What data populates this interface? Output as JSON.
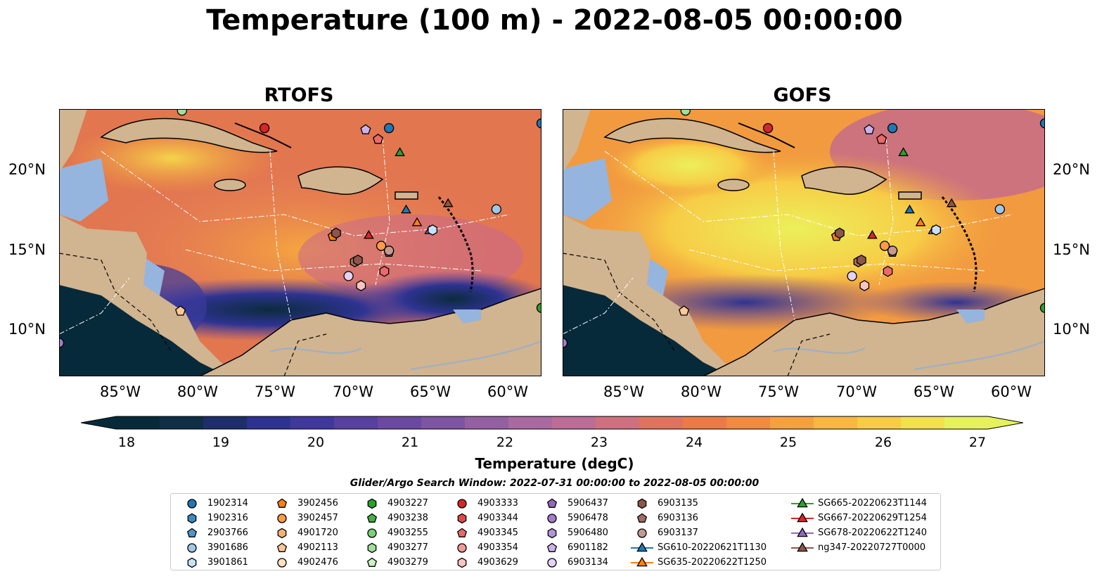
{
  "title": "Temperature (100 m) - 2022-08-05 00:00:00",
  "panels": [
    {
      "id": "rtofs",
      "title": "RTOFS"
    },
    {
      "id": "gofs",
      "title": "GOFS"
    }
  ],
  "lat_labels": [
    "20°N",
    "15°N",
    "10°N"
  ],
  "lon_labels": [
    "85°W",
    "80°W",
    "75°W",
    "70°W",
    "65°W",
    "60°W"
  ],
  "colorbar": {
    "label": "Temperature (degC)",
    "ticks": [
      "18",
      "19",
      "20",
      "21",
      "22",
      "23",
      "24",
      "25",
      "26",
      "27"
    ],
    "colors": [
      "#072a3a",
      "#0e2f45",
      "#1d2e6a",
      "#2e3391",
      "#40389f",
      "#57409f",
      "#6a4aa0",
      "#7e55a1",
      "#9460a2",
      "#a86aa0",
      "#bc6d95",
      "#cf7080",
      "#e0735f",
      "#ec7a47",
      "#f28a40",
      "#f6a13e",
      "#f7b740",
      "#f7cc46",
      "#f2e04e",
      "#e6f25c"
    ]
  },
  "search_window": "Glider/Argo Search Window: 2022-07-31 00:00:00 to 2022-08-05 00:00:00",
  "legend": [
    {
      "label": "1902314",
      "marker": "circle",
      "color": "#1f77b4"
    },
    {
      "label": "1902316",
      "marker": "hexagon",
      "color": "#3e88c4"
    },
    {
      "label": "2903766",
      "marker": "pentagon",
      "color": "#4f95cc"
    },
    {
      "label": "3901686",
      "marker": "circle",
      "color": "#9ec8ea"
    },
    {
      "label": "3901861",
      "marker": "hexagon",
      "color": "#c6e2f6"
    },
    {
      "label": "3902456",
      "marker": "pentagon",
      "color": "#ff7f0e"
    },
    {
      "label": "3902457",
      "marker": "circle",
      "color": "#ff9a45"
    },
    {
      "label": "4901720",
      "marker": "hexagon",
      "color": "#ffb070"
    },
    {
      "label": "4902113",
      "marker": "pentagon",
      "color": "#ffc896"
    },
    {
      "label": "4902476",
      "marker": "circle",
      "color": "#ffe0bf"
    },
    {
      "label": "4903227",
      "marker": "hexagon",
      "color": "#2ca02c"
    },
    {
      "label": "4903238",
      "marker": "pentagon",
      "color": "#46b046"
    },
    {
      "label": "4903255",
      "marker": "circle",
      "color": "#79d174"
    },
    {
      "label": "4903277",
      "marker": "hexagon",
      "color": "#9fdf98"
    },
    {
      "label": "4903279",
      "marker": "pentagon",
      "color": "#c8f0c0"
    },
    {
      "label": "4903333",
      "marker": "circle",
      "color": "#d62728"
    },
    {
      "label": "4903344",
      "marker": "hexagon",
      "color": "#e04848"
    },
    {
      "label": "4903345",
      "marker": "pentagon",
      "color": "#ea6a6a"
    },
    {
      "label": "4903354",
      "marker": "circle",
      "color": "#f29a96"
    },
    {
      "label": "4903629",
      "marker": "hexagon",
      "color": "#fbc4c0"
    },
    {
      "label": "5906437",
      "marker": "pentagon",
      "color": "#9467bd"
    },
    {
      "label": "5906478",
      "marker": "circle",
      "color": "#a47ccb"
    },
    {
      "label": "5906480",
      "marker": "hexagon",
      "color": "#b394da"
    },
    {
      "label": "6901182",
      "marker": "pentagon",
      "color": "#cbb3ea"
    },
    {
      "label": "6903134",
      "marker": "circle",
      "color": "#e3d2f6"
    },
    {
      "label": "6903135",
      "marker": "hexagon",
      "color": "#8c564b"
    },
    {
      "label": "6903136",
      "marker": "pentagon",
      "color": "#a36d60"
    },
    {
      "label": "6903137",
      "marker": "circle",
      "color": "#c4998e"
    },
    {
      "label": "SG610-20220621T1130",
      "marker": "triangle-line",
      "color": "#1f77b4"
    },
    {
      "label": "SG635-20220622T1250",
      "marker": "triangle-line",
      "color": "#ff7f0e"
    },
    {
      "label": "SG665-20220623T1144",
      "marker": "triangle-line",
      "color": "#2ca02c"
    },
    {
      "label": "SG667-20220629T1254",
      "marker": "triangle-line",
      "color": "#d62728"
    },
    {
      "label": "SG678-20220622T1240",
      "marker": "triangle-line",
      "color": "#9467bd"
    },
    {
      "label": "ng347-20220727T0000",
      "marker": "triangle-line",
      "color": "#8c564b"
    }
  ],
  "map_points": [
    {
      "lon": -75.8,
      "lat": 22.6,
      "marker": "circle",
      "color": "#d62728"
    },
    {
      "lon": -67.8,
      "lat": 22.6,
      "marker": "circle",
      "color": "#1f77b4"
    },
    {
      "lon": -69.3,
      "lat": 22.5,
      "marker": "pentagon",
      "color": "#cbb3ea"
    },
    {
      "lon": -68.5,
      "lat": 21.9,
      "marker": "pentagon",
      "color": "#ea6a6a"
    },
    {
      "lon": -81.1,
      "lat": 23.7,
      "marker": "circle",
      "color": "#9fdf98"
    },
    {
      "lon": -58.0,
      "lat": 22.9,
      "marker": "circle",
      "color": "#1f77b4"
    },
    {
      "lon": -67.1,
      "lat": 21.1,
      "marker": "triangle",
      "color": "#2ca02c"
    },
    {
      "lon": -66.7,
      "lat": 17.5,
      "marker": "triangle",
      "color": "#1f77b4"
    },
    {
      "lon": -66.0,
      "lat": 16.7,
      "marker": "triangle",
      "color": "#ff7f0e"
    },
    {
      "lon": -64.0,
      "lat": 17.9,
      "marker": "triangle",
      "color": "#8c564b"
    },
    {
      "lon": -65.2,
      "lat": 16.2,
      "marker": "triangle",
      "color": "#9467bd"
    },
    {
      "lon": -65.0,
      "lat": 16.2,
      "marker": "hexagon",
      "color": "#c6e2f6"
    },
    {
      "lon": -60.9,
      "lat": 17.5,
      "marker": "circle",
      "color": "#9ec8ea"
    },
    {
      "lon": -69.1,
      "lat": 15.9,
      "marker": "triangle",
      "color": "#d62728"
    },
    {
      "lon": -71.4,
      "lat": 15.8,
      "marker": "pentagon",
      "color": "#ff7f0e"
    },
    {
      "lon": -71.2,
      "lat": 16.0,
      "marker": "hexagon",
      "color": "#8c564b"
    },
    {
      "lon": -68.3,
      "lat": 15.2,
      "marker": "circle",
      "color": "#ff9a45"
    },
    {
      "lon": -67.8,
      "lat": 14.8,
      "marker": "pentagon",
      "color": "#9467bd"
    },
    {
      "lon": -67.8,
      "lat": 14.9,
      "marker": "circle",
      "color": "#c4998e"
    },
    {
      "lon": -70.0,
      "lat": 14.2,
      "marker": "hexagon",
      "color": "#a36d60"
    },
    {
      "lon": -69.8,
      "lat": 14.3,
      "marker": "hexagon",
      "color": "#8c564b"
    },
    {
      "lon": -68.1,
      "lat": 13.6,
      "marker": "hexagon",
      "color": "#ea6a6a"
    },
    {
      "lon": -70.4,
      "lat": 13.3,
      "marker": "circle",
      "color": "#e3d2f6"
    },
    {
      "lon": -69.6,
      "lat": 12.7,
      "marker": "hexagon",
      "color": "#fbc4c0"
    },
    {
      "lon": -81.2,
      "lat": 11.1,
      "marker": "pentagon",
      "color": "#ffc896"
    },
    {
      "lon": -89.0,
      "lat": 9.1,
      "marker": "circle",
      "color": "#a47ccb"
    },
    {
      "lon": -58.0,
      "lat": 11.3,
      "marker": "circle",
      "color": "#2ca02c"
    }
  ]
}
